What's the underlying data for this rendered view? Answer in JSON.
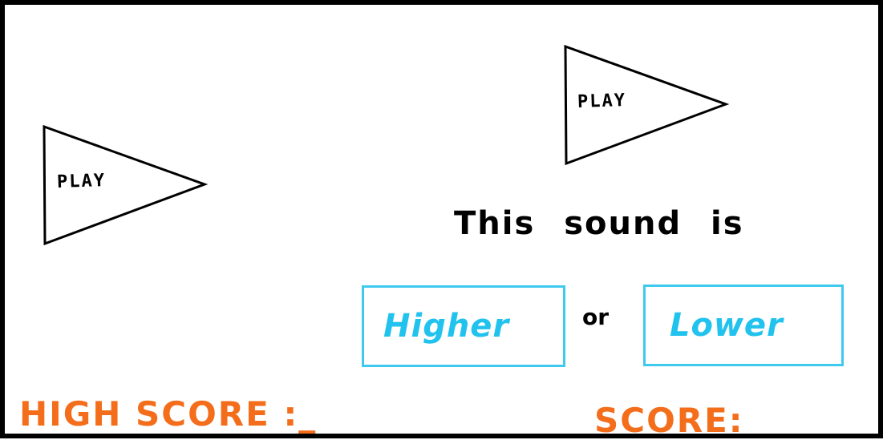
{
  "play_buttons": [
    {
      "label": "PLAY"
    },
    {
      "label": "PLAY"
    }
  ],
  "question": {
    "text": "This sound is"
  },
  "choices": {
    "higher_label": "Higher",
    "or_label": "or",
    "lower_label": "Lower"
  },
  "scores": {
    "high_score_text": "HIGH SCORE :_",
    "score_text": "SCORE:"
  },
  "colors": {
    "frame": "#000000",
    "choice_border": "#3ec9ef",
    "choice_text": "#22c2ee",
    "score_text": "#f36d1b"
  },
  "icons": {
    "play": "play-triangle-icon"
  }
}
